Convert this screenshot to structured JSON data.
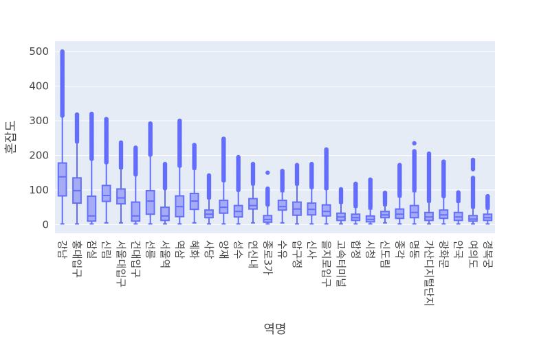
{
  "chart_data": {
    "type": "box",
    "title": "",
    "xlabel": "역명",
    "ylabel": "혼잡도",
    "ylim": [
      -25,
      530
    ],
    "yticks": [
      0,
      100,
      200,
      300,
      400,
      500
    ],
    "grid": true,
    "legend": "none",
    "colors": {
      "plot_bg": "#e5ecf6",
      "grid": "#ffffff",
      "box_line": "#636efa",
      "box_fill": "#a5abf4",
      "text": "#444444"
    },
    "categories": [
      "강남",
      "홍대입구",
      "잠실",
      "신림",
      "서울대입구",
      "건대입구",
      "선릉",
      "서울역",
      "역삼",
      "혜화",
      "사당",
      "양재",
      "성수",
      "연신내",
      "종로3가",
      "수유",
      "압구정",
      "신사",
      "을지로입구",
      "고속터미널",
      "합정",
      "시청",
      "신도림",
      "종각",
      "명동",
      "가산디지털단지",
      "광화문",
      "안국",
      "여의도",
      "경복궁"
    ],
    "boxes": [
      {
        "min": 2,
        "q1": 83,
        "median": 138,
        "q3": 178,
        "upper_fence": 313,
        "outliers": [
          315,
          330,
          345,
          360,
          375,
          390,
          405,
          420,
          435,
          450,
          465,
          475,
          485,
          500
        ]
      },
      {
        "min": 2,
        "q1": 62,
        "median": 98,
        "q3": 135,
        "upper_fence": 238,
        "outliers": [
          240,
          255,
          270,
          285,
          300,
          310,
          318
        ]
      },
      {
        "min": 2,
        "q1": 10,
        "median": 25,
        "q3": 82,
        "upper_fence": 188,
        "outliers": [
          190,
          210,
          230,
          250,
          270,
          290,
          305,
          320
        ]
      },
      {
        "min": 5,
        "q1": 67,
        "median": 84,
        "q3": 113,
        "upper_fence": 178,
        "outliers": [
          180,
          195,
          210,
          225,
          240,
          255,
          270,
          285,
          298,
          305
        ]
      },
      {
        "min": 5,
        "q1": 60,
        "median": 77,
        "q3": 103,
        "upper_fence": 162,
        "outliers": [
          165,
          180,
          195,
          210,
          225,
          237
        ]
      },
      {
        "min": 2,
        "q1": 10,
        "median": 25,
        "q3": 65,
        "upper_fence": 143,
        "outliers": [
          145,
          160,
          175,
          190,
          205,
          215,
          222
        ]
      },
      {
        "min": 2,
        "q1": 30,
        "median": 68,
        "q3": 98,
        "upper_fence": 200,
        "outliers": [
          202,
          215,
          230,
          245,
          260,
          275,
          285,
          292
        ]
      },
      {
        "min": 2,
        "q1": 12,
        "median": 25,
        "q3": 50,
        "upper_fence": 103,
        "outliers": [
          105,
          115,
          130,
          145,
          160,
          175
        ]
      },
      {
        "min": 2,
        "q1": 23,
        "median": 52,
        "q3": 83,
        "upper_fence": 168,
        "outliers": [
          170,
          185,
          200,
          215,
          230,
          245,
          260,
          275,
          290,
          300
        ]
      },
      {
        "min": 5,
        "q1": 44,
        "median": 68,
        "q3": 90,
        "upper_fence": 160,
        "outliers": [
          165,
          175,
          190,
          205,
          215,
          222,
          230
        ]
      },
      {
        "min": 2,
        "q1": 20,
        "median": 30,
        "q3": 42,
        "upper_fence": 75,
        "outliers": [
          78,
          90,
          105,
          120,
          135,
          142
        ]
      },
      {
        "min": 2,
        "q1": 33,
        "median": 50,
        "q3": 70,
        "upper_fence": 125,
        "outliers": [
          128,
          145,
          160,
          175,
          190,
          205,
          220,
          235,
          248
        ]
      },
      {
        "min": 2,
        "q1": 22,
        "median": 38,
        "q3": 55,
        "upper_fence": 98,
        "outliers": [
          100,
          115,
          130,
          145,
          160,
          175,
          188,
          195
        ]
      },
      {
        "min": 5,
        "q1": 45,
        "median": 55,
        "q3": 75,
        "upper_fence": 115,
        "outliers": [
          120,
          135,
          150,
          162,
          175
        ]
      },
      {
        "min": 2,
        "q1": 7,
        "median": 15,
        "q3": 26,
        "upper_fence": 55,
        "outliers": [
          58,
          70,
          82,
          94,
          104,
          150
        ]
      },
      {
        "min": 5,
        "q1": 42,
        "median": 52,
        "q3": 70,
        "upper_fence": 95,
        "outliers": [
          100,
          110,
          120,
          130,
          140,
          150,
          155
        ]
      },
      {
        "min": 2,
        "q1": 27,
        "median": 45,
        "q3": 65,
        "upper_fence": 115,
        "outliers": [
          118,
          128,
          140,
          152,
          162,
          172
        ]
      },
      {
        "min": 2,
        "q1": 28,
        "median": 44,
        "q3": 62,
        "upper_fence": 105,
        "outliers": [
          108,
          120,
          135,
          150,
          165,
          175
        ]
      },
      {
        "min": 2,
        "q1": 25,
        "median": 38,
        "q3": 57,
        "upper_fence": 102,
        "outliers": [
          105,
          120,
          135,
          150,
          165,
          180,
          195,
          210,
          217
        ]
      },
      {
        "min": 2,
        "q1": 12,
        "median": 22,
        "q3": 33,
        "upper_fence": 62,
        "outliers": [
          65,
          75,
          85,
          95,
          102
        ]
      },
      {
        "min": 2,
        "q1": 12,
        "median": 20,
        "q3": 30,
        "upper_fence": 50,
        "outliers": [
          55,
          65,
          75,
          85,
          95,
          105,
          118
        ]
      },
      {
        "min": 2,
        "q1": 8,
        "median": 15,
        "q3": 25,
        "upper_fence": 45,
        "outliers": [
          50,
          65,
          80,
          95,
          110,
          122,
          130
        ]
      },
      {
        "min": 5,
        "q1": 20,
        "median": 28,
        "q3": 38,
        "upper_fence": 55,
        "outliers": [
          60,
          68,
          76,
          84,
          92
        ]
      },
      {
        "min": 2,
        "q1": 18,
        "median": 30,
        "q3": 45,
        "upper_fence": 80,
        "outliers": [
          85,
          100,
          115,
          130,
          145,
          160,
          172
        ]
      },
      {
        "min": 2,
        "q1": 20,
        "median": 35,
        "q3": 55,
        "upper_fence": 95,
        "outliers": [
          100,
          115,
          130,
          145,
          158,
          170,
          185,
          200,
          212,
          235
        ]
      },
      {
        "min": 2,
        "q1": 12,
        "median": 22,
        "q3": 35,
        "upper_fence": 65,
        "outliers": [
          70,
          85,
          100,
          115,
          130,
          145,
          160,
          175,
          190,
          205
        ]
      },
      {
        "min": 2,
        "q1": 18,
        "median": 28,
        "q3": 42,
        "upper_fence": 80,
        "outliers": [
          82,
          95,
          110,
          125,
          140,
          155,
          170,
          182
        ]
      },
      {
        "min": 2,
        "q1": 12,
        "median": 22,
        "q3": 35,
        "upper_fence": 65,
        "outliers": [
          68,
          75,
          85,
          93
        ]
      },
      {
        "min": 2,
        "q1": 10,
        "median": 16,
        "q3": 26,
        "upper_fence": 48,
        "outliers": [
          52,
          65,
          78,
          90,
          105,
          120,
          135,
          160,
          175,
          187
        ]
      },
      {
        "min": 2,
        "q1": 12,
        "median": 20,
        "q3": 30,
        "upper_fence": 45,
        "outliers": [
          50,
          58,
          66,
          74,
          82
        ]
      }
    ]
  }
}
